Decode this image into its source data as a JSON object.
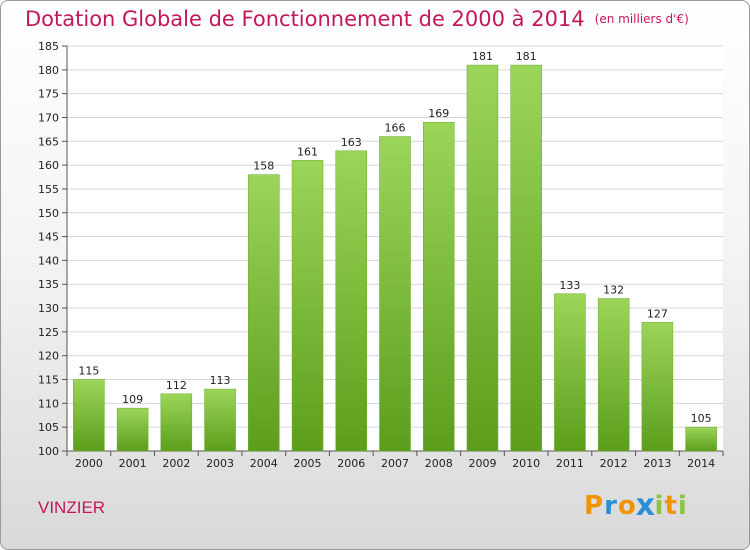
{
  "chart_data": {
    "type": "bar",
    "title": "Dotation Globale de Fonctionnement de 2000 à 2014",
    "subtitle": "(en milliers d'€)",
    "categories": [
      "2000",
      "2001",
      "2002",
      "2003",
      "2004",
      "2005",
      "2006",
      "2007",
      "2008",
      "2009",
      "2010",
      "2011",
      "2012",
      "2013",
      "2014"
    ],
    "values": [
      115,
      109,
      112,
      113,
      158,
      161,
      163,
      166,
      169,
      181,
      181,
      133,
      132,
      127,
      105
    ],
    "ylim": [
      100,
      185
    ],
    "yticks": [
      100,
      105,
      110,
      115,
      120,
      125,
      130,
      135,
      140,
      145,
      150,
      155,
      160,
      165,
      170,
      175,
      180,
      185
    ],
    "grid": true,
    "bar_color": "#7cc73a",
    "data_labels": true
  },
  "footer": {
    "commune": "VINZIER",
    "logo": {
      "letters": [
        "P",
        "r",
        "o",
        "x",
        "i",
        "t",
        "i"
      ],
      "colors": [
        "#f29400",
        "#2c8fd6",
        "#f29400",
        "#2c8fd6",
        "#8cc63f",
        "#f29400",
        "#8cc63f"
      ]
    }
  }
}
